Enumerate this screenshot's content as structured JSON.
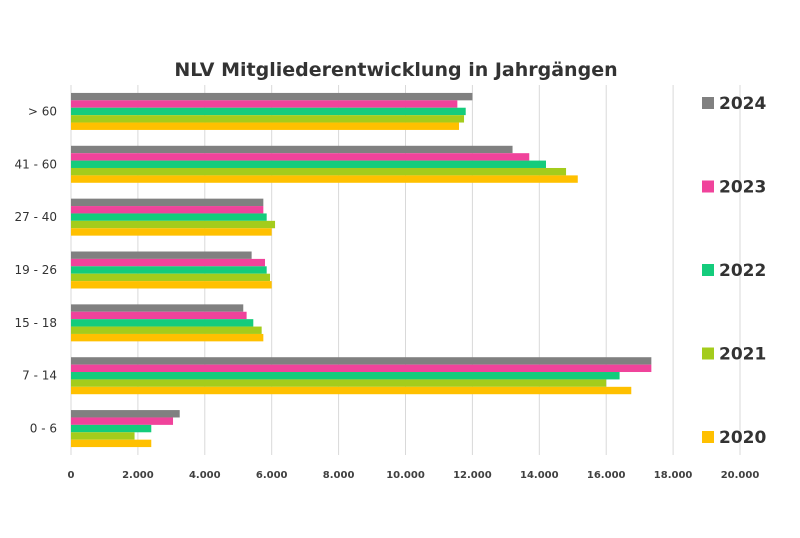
{
  "chart_data": {
    "type": "bar",
    "orientation": "horizontal",
    "title": "NLV Mitgliederentwicklung in Jahrgängen",
    "categories": [
      "> 60",
      "41 - 60",
      "27 - 40",
      "19 - 26",
      "15 - 18",
      "7 - 14",
      "0 - 6"
    ],
    "x_ticks": [
      "0",
      "2.000",
      "4.000",
      "6.000",
      "8.000",
      "10.000",
      "12.000",
      "14.000",
      "16.000",
      "18.000",
      "20.000"
    ],
    "xlim": [
      0,
      20000
    ],
    "grid": true,
    "legend_placement": "right",
    "series": [
      {
        "name": "2024",
        "color": "#808080",
        "values": [
          12000,
          13200,
          5750,
          5400,
          5150,
          17350,
          3250
        ]
      },
      {
        "name": "2023",
        "color": "#f0439b",
        "values": [
          11550,
          13700,
          5750,
          5800,
          5250,
          17350,
          3050
        ]
      },
      {
        "name": "2022",
        "color": "#14cc7c",
        "values": [
          11800,
          14200,
          5850,
          5850,
          5450,
          16400,
          2400
        ]
      },
      {
        "name": "2021",
        "color": "#a4cc1c",
        "values": [
          11750,
          14800,
          6100,
          5950,
          5700,
          16000,
          1900
        ]
      },
      {
        "name": "2020",
        "color": "#ffc000",
        "values": [
          11600,
          15150,
          6000,
          6000,
          5750,
          16750,
          2400
        ]
      }
    ]
  }
}
